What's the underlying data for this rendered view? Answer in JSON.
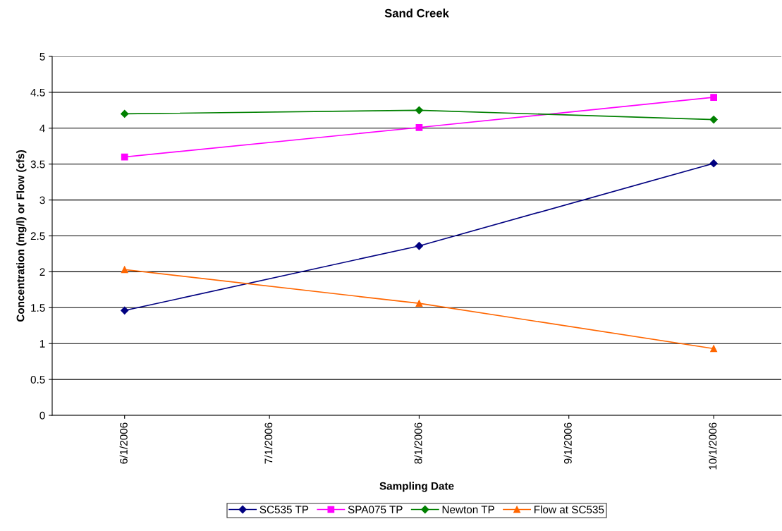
{
  "chart_data": {
    "type": "line",
    "title": "Sand Creek",
    "xlabel": "Sampling Date",
    "ylabel": "Concentration (mg/l) or Flow (cfs)",
    "x": [
      "2006-06-01",
      "2006-08-01",
      "2006-10-01"
    ],
    "xlim": [
      "2006-05-17",
      "2006-10-15"
    ],
    "xticks": [
      {
        "value": "2006-06-01",
        "label": "6/1/2006"
      },
      {
        "value": "2006-07-01",
        "label": "7/1/2006"
      },
      {
        "value": "2006-08-01",
        "label": "8/1/2006"
      },
      {
        "value": "2006-09-01",
        "label": "9/1/2006"
      },
      {
        "value": "2006-10-01",
        "label": "10/1/2006"
      }
    ],
    "ylim": [
      0,
      5
    ],
    "yticks": [
      0,
      0.5,
      1,
      1.5,
      2,
      2.5,
      3,
      3.5,
      4,
      4.5,
      5
    ],
    "grid": "y",
    "legend": "bottom",
    "line_style": "solid",
    "series": [
      {
        "name": "SC535 TP",
        "color": "#000080",
        "marker": "diamond",
        "values": [
          1.46,
          2.36,
          3.51
        ]
      },
      {
        "name": "SPA075 TP",
        "color": "#ff00ff",
        "marker": "square",
        "values": [
          3.6,
          4.01,
          4.43
        ]
      },
      {
        "name": "Newton TP",
        "color": "#008000",
        "marker": "diamond",
        "values": [
          4.2,
          4.25,
          4.12
        ]
      },
      {
        "name": "Flow at SC535",
        "color": "#ff6600",
        "marker": "triangle",
        "values": [
          2.03,
          1.56,
          0.93
        ]
      }
    ]
  }
}
